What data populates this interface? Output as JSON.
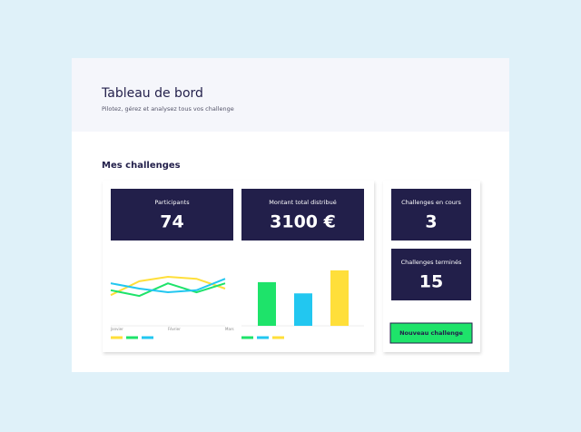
{
  "header": {
    "title": "Tableau de bord",
    "subtitle": "Pilotez, gérez et analysez tous vos challenge"
  },
  "section_title": "Mes challenges",
  "stats": [
    {
      "label": "Participants",
      "value": "74"
    },
    {
      "label": "Montant total distribué",
      "value": "3100 €"
    },
    {
      "label": "Challenges en cours",
      "value": "3"
    },
    {
      "label": "Challenges terminés",
      "value": "15"
    }
  ],
  "button": "Nouveau challenge",
  "line_chart": {
    "type": "line",
    "categories": [
      "Janvier",
      null,
      "Février",
      null,
      "Mars"
    ],
    "series": [
      {
        "color": "#ffdf3a",
        "values": [
          44,
          78,
          89,
          84,
          60
        ]
      },
      {
        "color": "#1ee36a",
        "values": [
          56,
          42,
          73,
          51,
          73
        ]
      },
      {
        "color": "#22c7f0",
        "values": [
          73,
          60,
          51,
          56,
          84
        ]
      }
    ]
  },
  "bar_chart": {
    "type": "bar",
    "values": [
      74,
      55,
      94
    ],
    "colors": [
      "#1ee36a",
      "#22c7f0",
      "#ffdf3a"
    ]
  }
}
